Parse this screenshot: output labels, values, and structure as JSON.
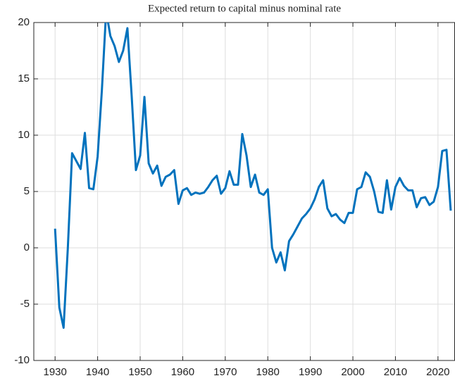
{
  "chart_data": {
    "type": "line",
    "title": "Expected return to capital minus nominal rate",
    "x": [
      1930,
      1931,
      1932,
      1933,
      1934,
      1935,
      1936,
      1937,
      1938,
      1939,
      1940,
      1941,
      1942,
      1943,
      1944,
      1945,
      1946,
      1947,
      1948,
      1949,
      1950,
      1951,
      1952,
      1953,
      1954,
      1955,
      1956,
      1957,
      1958,
      1959,
      1960,
      1961,
      1962,
      1963,
      1964,
      1965,
      1966,
      1967,
      1968,
      1969,
      1970,
      1971,
      1972,
      1973,
      1974,
      1975,
      1976,
      1977,
      1978,
      1979,
      1980,
      1981,
      1982,
      1983,
      1984,
      1985,
      1986,
      1987,
      1988,
      1989,
      1990,
      1991,
      1992,
      1993,
      1994,
      1995,
      1996,
      1997,
      1998,
      1999,
      2000,
      2001,
      2002,
      2003,
      2004,
      2005,
      2006,
      2007,
      2008,
      2009,
      2010,
      2011,
      2012,
      2013,
      2014,
      2015,
      2016,
      2017,
      2018,
      2019,
      2020,
      2021,
      2022,
      2023
    ],
    "series": [
      {
        "color": "#0072bd",
        "values": [
          1.7,
          -5.3,
          -7.1,
          0,
          8.4,
          7.7,
          7.0,
          10.2,
          5.3,
          5.2,
          8.1,
          14,
          21,
          18.8,
          17.9,
          16.5,
          17.5,
          19.5,
          13.5,
          6.9,
          8.2,
          13.4,
          7.5,
          6.6,
          7.3,
          5.5,
          6.3,
          6.5,
          6.9,
          3.9,
          5.1,
          5.3,
          4.7,
          4.9,
          4.8,
          4.9,
          5.4,
          6.0,
          6.4,
          4.8,
          5.3,
          6.8,
          5.6,
          5.6,
          10.1,
          8.2,
          5.4,
          6.5,
          4.9,
          4.7,
          5.2,
          0,
          -1.3,
          -0.4,
          -2.0,
          0.6,
          1.2,
          1.9,
          2.6,
          3.0,
          3.5,
          4.3,
          5.4,
          6.0,
          3.5,
          2.8,
          3.0,
          2.5,
          2.2,
          3.1,
          3.1,
          5.2,
          5.4,
          6.7,
          6.3,
          5.0,
          3.2,
          3.1,
          6.0,
          3.4,
          5.4,
          6.2,
          5.5,
          5.1,
          5.1,
          3.6,
          4.4,
          4.5,
          3.8,
          4.1,
          5.4,
          8.6,
          8.7,
          3.3
        ]
      }
    ],
    "xlim": [
      1925,
      2024
    ],
    "ylim": [
      -10,
      20
    ],
    "xticks": [
      1930,
      1940,
      1950,
      1960,
      1970,
      1980,
      1990,
      2000,
      2010,
      2020
    ],
    "yticks": [
      -10,
      -5,
      0,
      5,
      10,
      15,
      20
    ],
    "grid": true
  }
}
